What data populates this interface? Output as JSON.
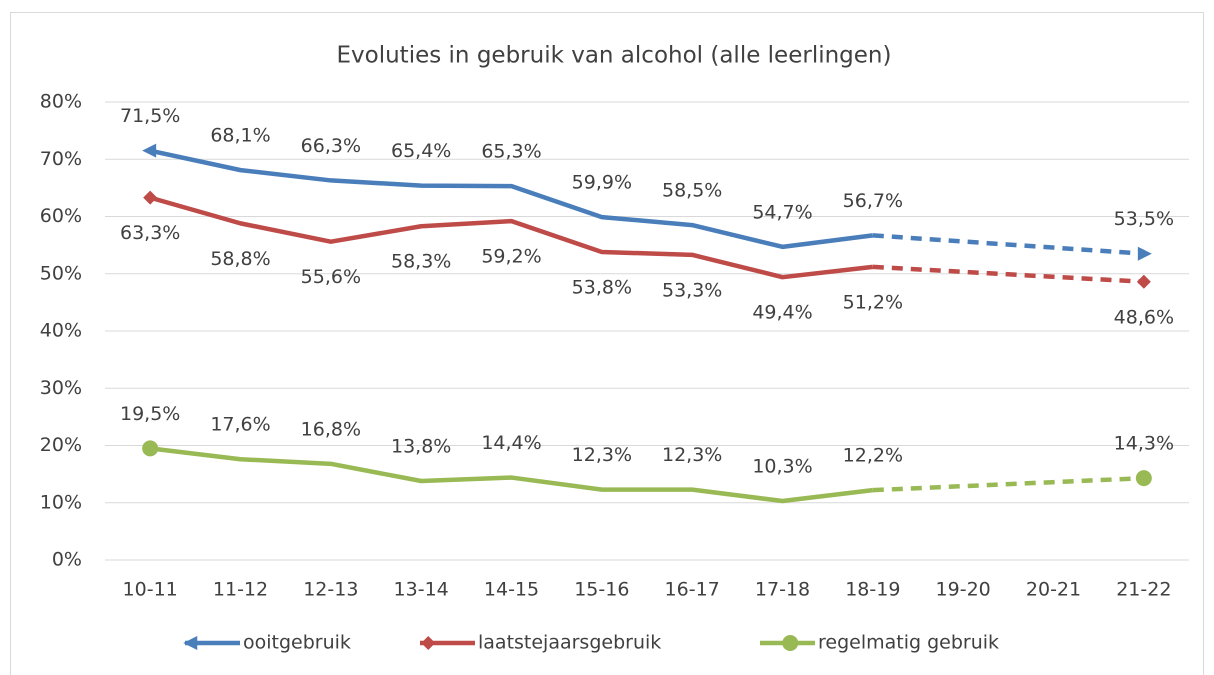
{
  "chart_data": {
    "type": "line",
    "title": "Evoluties in gebruik van alcohol (alle leerlingen)",
    "categories": [
      "10-11",
      "11-12",
      "12-13",
      "13-14",
      "14-15",
      "15-16",
      "16-17",
      "17-18",
      "18-19",
      "19-20",
      "20-21",
      "21-22"
    ],
    "series": [
      {
        "name": "ooitgebruik",
        "color": "#4a7ebb",
        "marker": "arrow",
        "values": [
          71.5,
          68.1,
          66.3,
          65.4,
          65.3,
          59.9,
          58.5,
          54.7,
          56.7,
          null,
          null,
          53.5
        ],
        "value_labels": [
          "71,5%",
          "68,1%",
          "66,3%",
          "65,4%",
          "65,3%",
          "59,9%",
          "58,5%",
          "54,7%",
          "56,7%",
          null,
          null,
          "53,5%"
        ]
      },
      {
        "name": "laatstejaarsgebruik",
        "color": "#be4b48",
        "marker": "diamond",
        "values": [
          63.3,
          58.8,
          55.6,
          58.3,
          59.2,
          53.8,
          53.3,
          49.4,
          51.2,
          null,
          null,
          48.6
        ],
        "value_labels": [
          "63,3%",
          "58,8%",
          "55,6%",
          "58,3%",
          "59,2%",
          "53,8%",
          "53,3%",
          "49,4%",
          "51,2%",
          null,
          null,
          "48,6%"
        ]
      },
      {
        "name": "regelmatig gebruik",
        "color": "#98b954",
        "marker": "circle",
        "values": [
          19.5,
          17.6,
          16.8,
          13.8,
          14.4,
          12.3,
          12.3,
          10.3,
          12.2,
          null,
          null,
          14.3
        ],
        "value_labels": [
          "19,5%",
          "17,6%",
          "16,8%",
          "13,8%",
          "14,4%",
          "12,3%",
          "12,3%",
          "10,3%",
          "12,2%",
          null,
          null,
          "14,3%"
        ]
      }
    ],
    "ylim": [
      0,
      80
    ],
    "yticks": [
      {
        "value": 0,
        "label": "0%"
      },
      {
        "value": 10,
        "label": "10%"
      },
      {
        "value": 20,
        "label": "20%"
      },
      {
        "value": 30,
        "label": "30%"
      },
      {
        "value": 40,
        "label": "40%"
      },
      {
        "value": 50,
        "label": "50%"
      },
      {
        "value": 60,
        "label": "60%"
      },
      {
        "value": 70,
        "label": "70%"
      },
      {
        "value": 80,
        "label": "80%"
      }
    ],
    "grid": true,
    "dashed_gaps": true,
    "legend": "bottom"
  }
}
